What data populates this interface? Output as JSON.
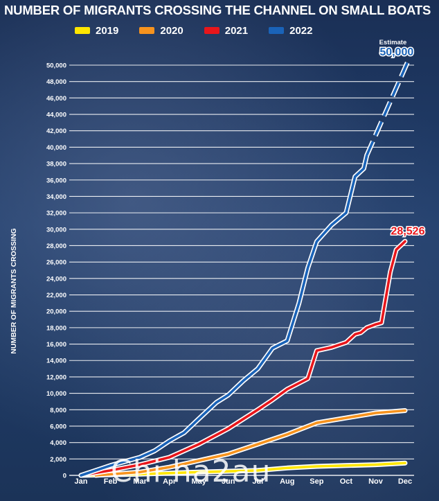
{
  "title": "NUMBER OF MIGRANTS CROSSING THE CHANNEL ON SMALL BOATS",
  "watermark": "Chi ha2au",
  "chart_data": {
    "type": "line",
    "title": "NUMBER OF MIGRANTS CROSSING THE CHANNEL ON SMALL BOATS",
    "ylabel": "NUMBER OF MIGRANTS CROSSING",
    "xlabel": "",
    "categories": [
      "Jan",
      "Feb",
      "Mar",
      "Apr",
      "May",
      "Jun",
      "Jul",
      "Aug",
      "Sep",
      "Oct",
      "Nov",
      "Dec"
    ],
    "ylim": [
      0,
      50000
    ],
    "yticks": [
      0,
      2000,
      4000,
      6000,
      8000,
      10000,
      12000,
      14000,
      16000,
      18000,
      20000,
      22000,
      24000,
      26000,
      28000,
      30000,
      32000,
      34000,
      36000,
      38000,
      40000,
      42000,
      44000,
      46000,
      48000,
      50000
    ],
    "ytick_labels": [
      "0",
      "2,000",
      "4,000",
      "6,000",
      "8,000",
      "10,000",
      "12,000",
      "14,000",
      "16,000",
      "18,000",
      "20,000",
      "22,000",
      "24,000",
      "26,000",
      "28,000",
      "30,000",
      "32,000",
      "34,000",
      "36,000",
      "38,000",
      "40,000",
      "42,000",
      "44,000",
      "46,000",
      "48,000",
      "50,000"
    ],
    "grid": true,
    "legend_position": "top",
    "series": [
      {
        "name": "2019",
        "color": "#ffe600",
        "x": [
          1,
          3,
          5,
          7,
          8,
          9,
          10,
          11,
          12
        ],
        "y": [
          0,
          150,
          400,
          600,
          900,
          1100,
          1200,
          1300,
          1500
        ]
      },
      {
        "name": "2020",
        "color": "#f7931e",
        "x": [
          1.5,
          3,
          4,
          5,
          6,
          7,
          8,
          9,
          10,
          11,
          12
        ],
        "y": [
          0,
          400,
          1000,
          1800,
          2600,
          3800,
          5000,
          6400,
          7000,
          7600,
          7900
        ]
      },
      {
        "name": "2021",
        "color": "#e8161b",
        "x": [
          1,
          2,
          3,
          4,
          5,
          6,
          7,
          7.5,
          8,
          8.7,
          9,
          9.5,
          10,
          10.3,
          10.5,
          10.7,
          11,
          11.2,
          11.5,
          11.7,
          12
        ],
        "y": [
          0,
          600,
          1300,
          2200,
          3800,
          5700,
          8000,
          9200,
          10500,
          11800,
          15200,
          15600,
          16200,
          17200,
          17400,
          18000,
          18400,
          18600,
          24800,
          27500,
          28526
        ]
      },
      {
        "name": "2022",
        "color": "#1a63b8",
        "x": [
          1,
          2,
          3,
          3.5,
          4,
          4.5,
          5,
          5.6,
          6,
          6.5,
          7,
          7.5,
          8,
          8.4,
          8.7,
          9,
          9.5,
          10,
          10.3,
          10.6,
          10.7
        ],
        "y": [
          0,
          1200,
          2200,
          3000,
          4200,
          5200,
          6900,
          8900,
          9800,
          11500,
          13000,
          15500,
          16400,
          21000,
          25300,
          28500,
          30500,
          32000,
          36400,
          37400,
          39000
        ],
        "estimate_x": [
          10.7,
          12.1
        ],
        "estimate_y": [
          39000,
          50500
        ]
      }
    ],
    "annotations": [
      {
        "text": "Estimate",
        "series": "2022"
      },
      {
        "text": "50,000",
        "series": "2022"
      },
      {
        "text": "28,526",
        "series": "2021"
      }
    ]
  }
}
